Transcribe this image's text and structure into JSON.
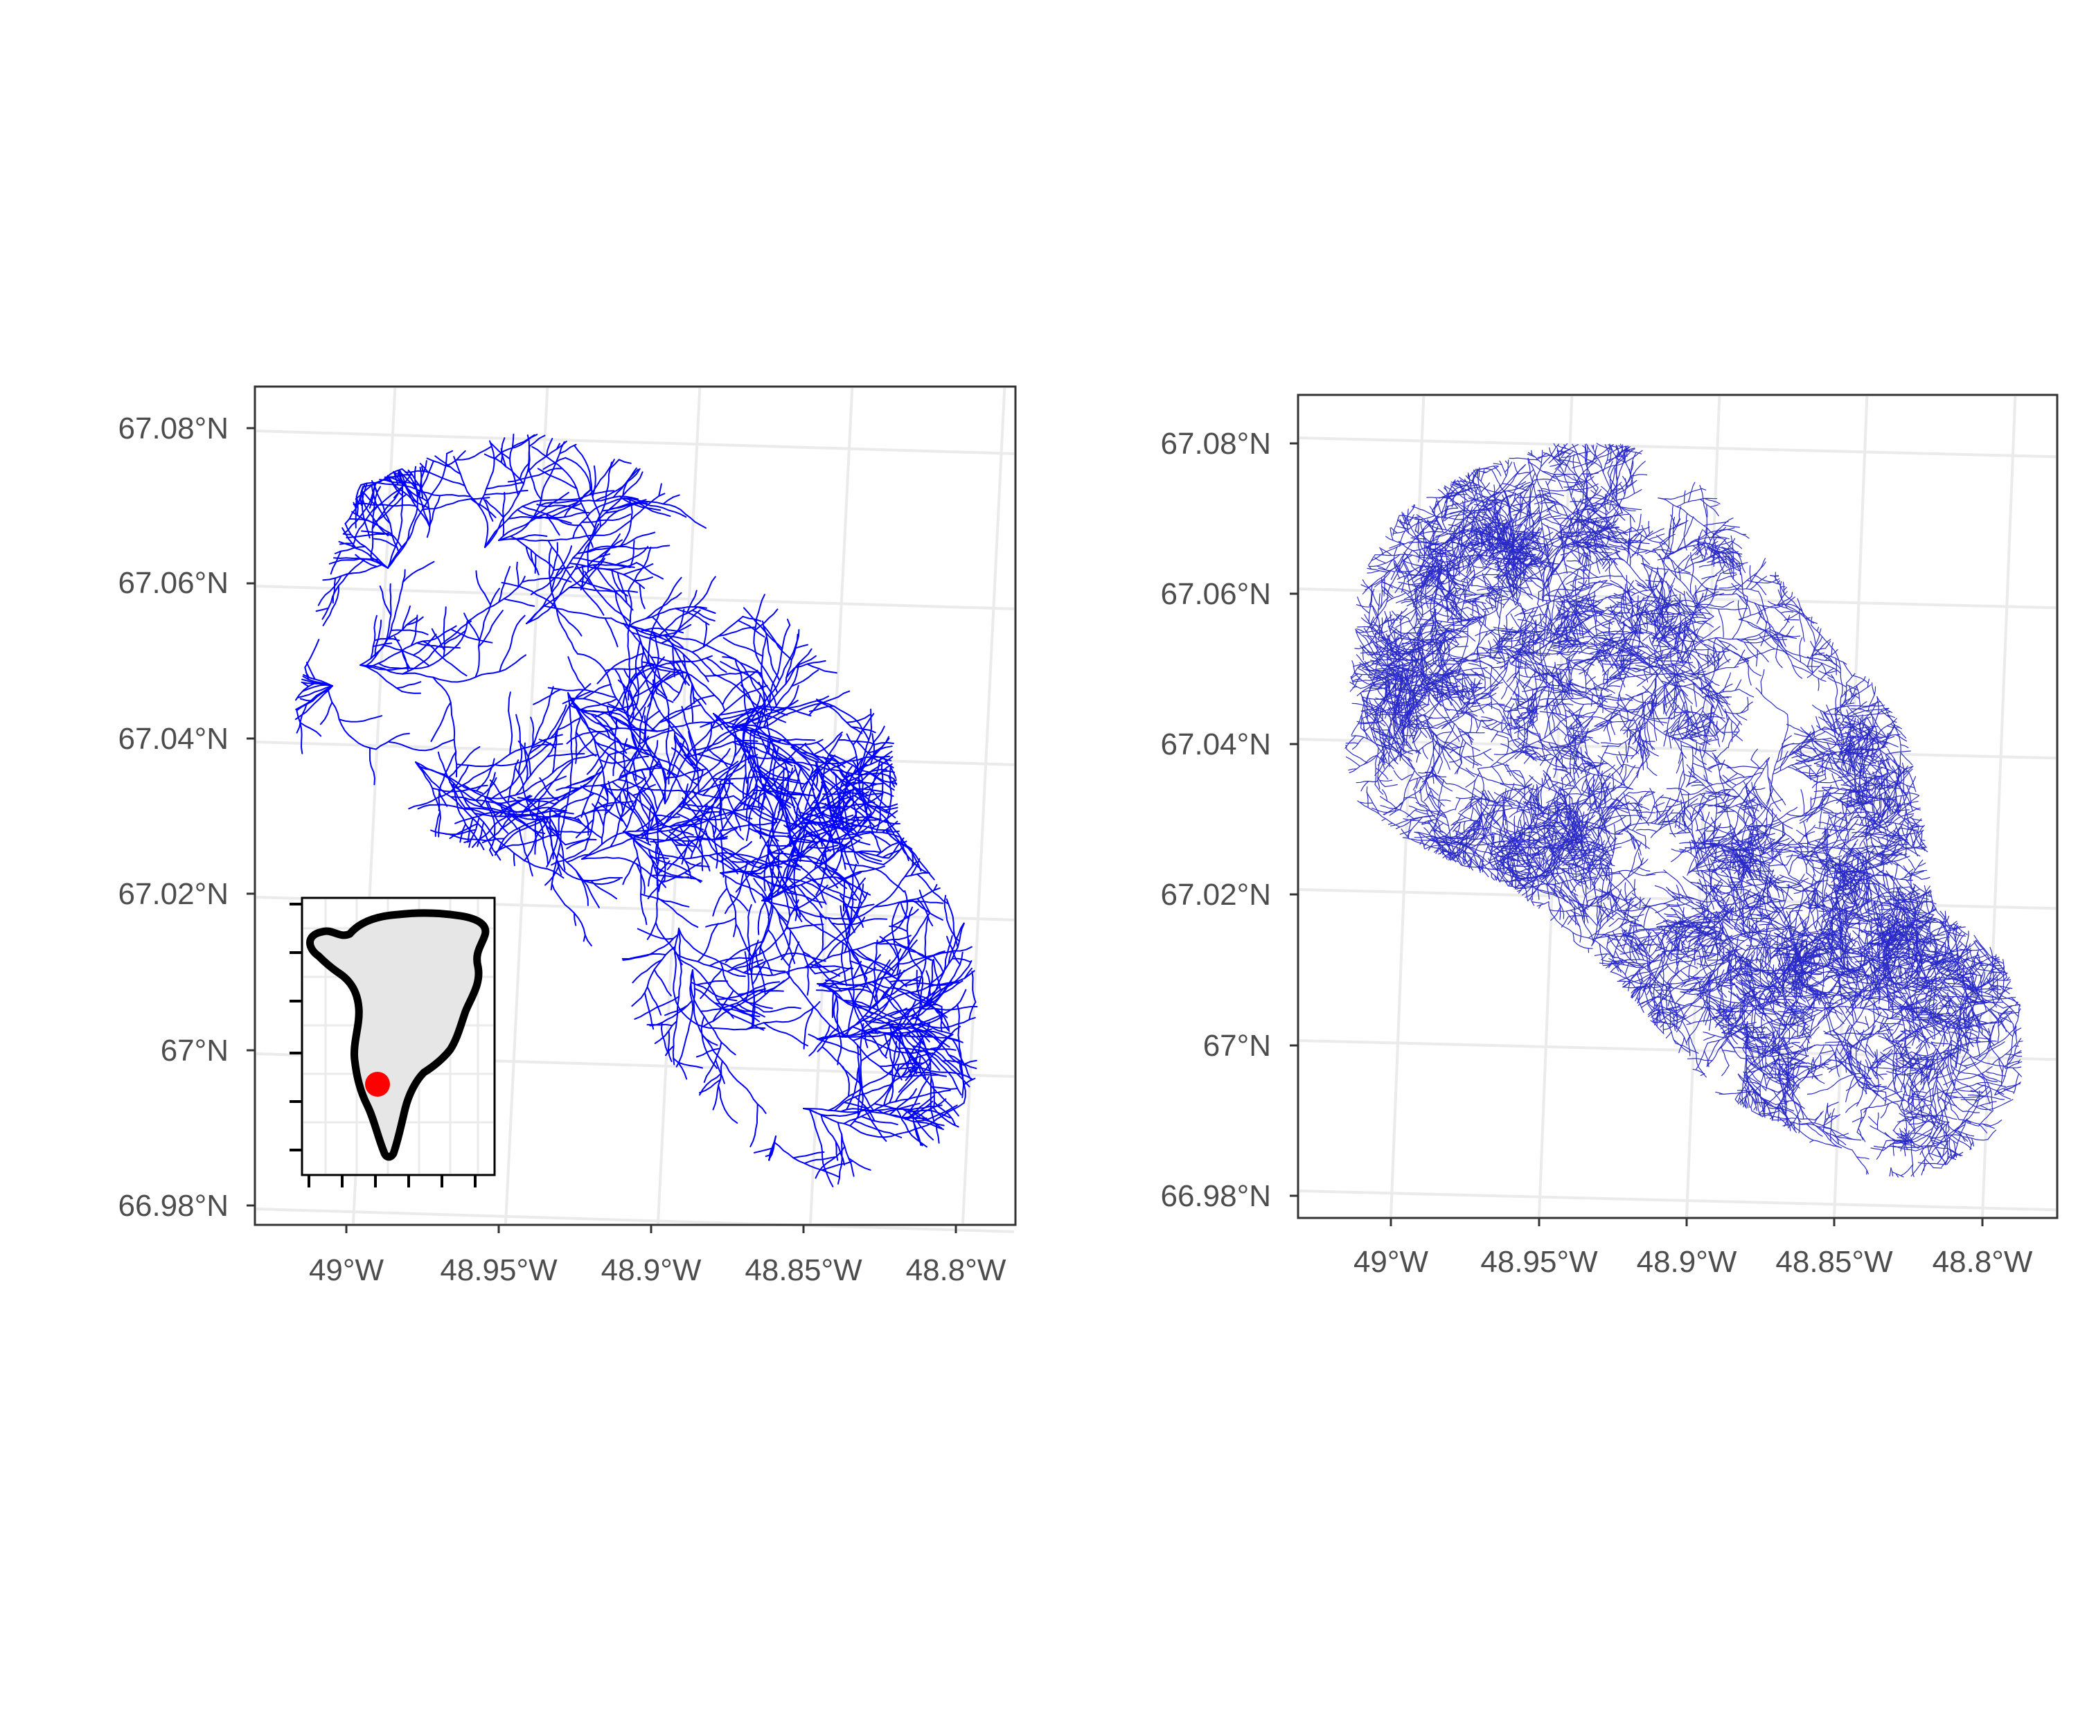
{
  "colors": {
    "stream": "#0000ff",
    "stream_dense": "#2a2ac8",
    "gridline": "#ebebeb",
    "panel_border": "#333333",
    "tick_text": "#4d4d4d",
    "land_fill": "#e6e6e6",
    "coast": "#000000",
    "marker": "#ff0000"
  },
  "maps": [
    {
      "id": "left",
      "description": "stream network (sparse)",
      "y_ticks": [
        "67.08°N",
        "67.06°N",
        "67.04°N",
        "67.02°N",
        "67°N",
        "66.98°N"
      ],
      "x_ticks": [
        "49°W",
        "48.95°W",
        "48.9°W",
        "48.85°W",
        "48.8°W"
      ],
      "has_inset": true
    },
    {
      "id": "right",
      "description": "stream network (dense)",
      "y_ticks": [
        "67.08°N",
        "67.06°N",
        "67.04°N",
        "67.02°N",
        "67°N",
        "66.98°N"
      ],
      "x_ticks": [
        "49°W",
        "48.95°W",
        "48.9°W",
        "48.85°W",
        "48.8°W"
      ],
      "has_inset": false
    }
  ],
  "inset": {
    "icon": "greenland-locator-map",
    "marker_icon": "red-dot-location-marker"
  }
}
